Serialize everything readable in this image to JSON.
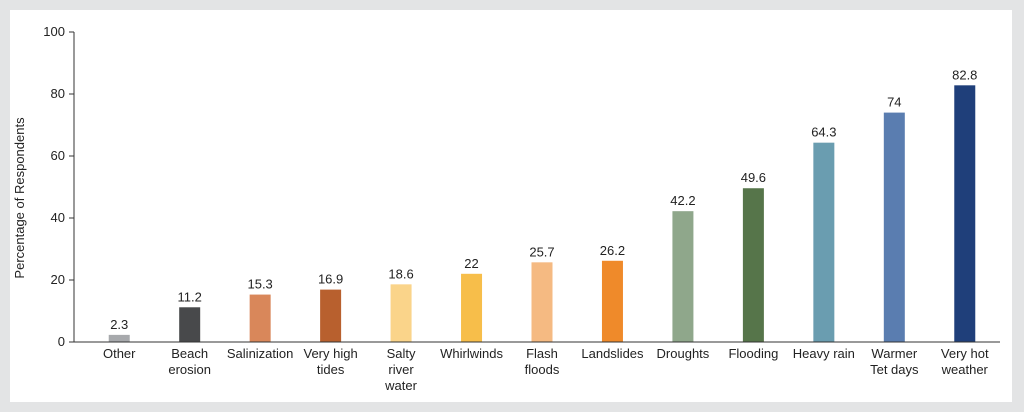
{
  "chart_data": {
    "type": "bar",
    "title": "",
    "xlabel": "",
    "ylabel": "Percentage of Respondents",
    "ylim": [
      0,
      100
    ],
    "yticks": [
      0,
      20,
      40,
      60,
      80,
      100
    ],
    "grid": false,
    "categories": [
      [
        "Other"
      ],
      [
        "Beach",
        "erosion"
      ],
      [
        "Salinization"
      ],
      [
        "Very high",
        "tides"
      ],
      [
        "Salty",
        "river",
        "water"
      ],
      [
        "Whirlwinds"
      ],
      [
        "Flash",
        "floods"
      ],
      [
        "Landslides"
      ],
      [
        "Droughts"
      ],
      [
        "Flooding"
      ],
      [
        "Heavy rain"
      ],
      [
        "Warmer",
        "Tet days"
      ],
      [
        "Very hot",
        "weather"
      ]
    ],
    "values": [
      2.3,
      11.2,
      15.3,
      16.9,
      18.6,
      22,
      25.7,
      26.2,
      42.2,
      49.6,
      64.3,
      74,
      82.8
    ],
    "colors": [
      "#a7a9ac",
      "#48494b",
      "#d9875a",
      "#b8602e",
      "#fad48a",
      "#f7be4a",
      "#f5ba82",
      "#ef8a2a",
      "#8fa78b",
      "#56754a",
      "#6a9db0",
      "#5a7db0",
      "#1f3f7a"
    ]
  }
}
